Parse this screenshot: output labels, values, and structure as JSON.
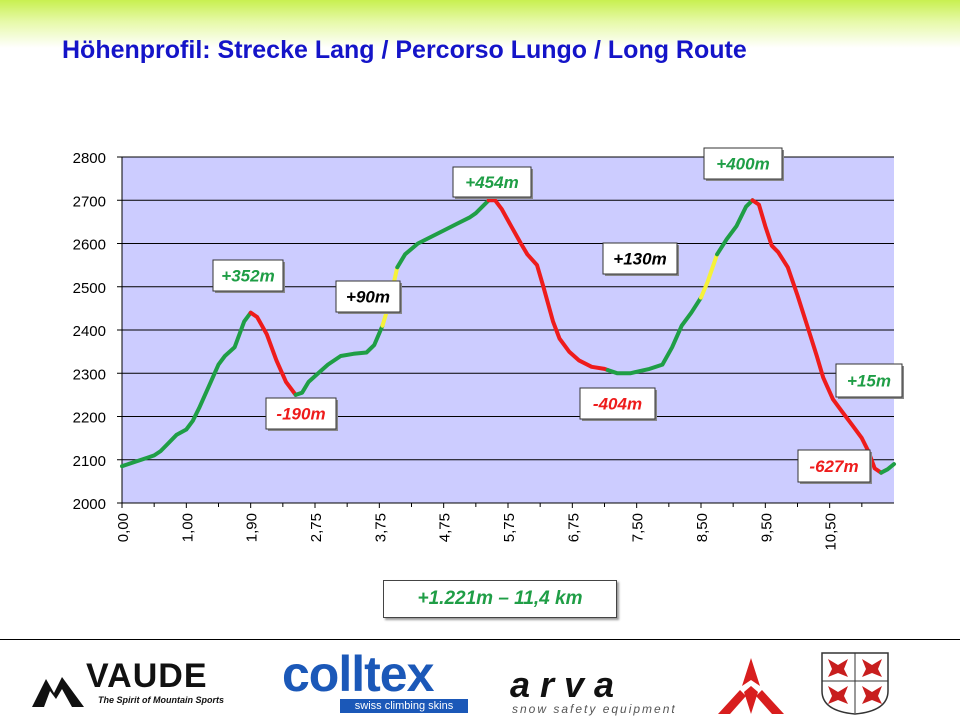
{
  "title": "Höhenprofil: Strecke Lang / Percorso Lungo / Long Route",
  "summary": "+1.221m – 11,4 km",
  "colors": {
    "up": "#1f9e46",
    "down": "#ee1c1c",
    "flat": "#f6f23a",
    "plot_bg": "#ccccff",
    "title": "#1414c8"
  },
  "chart_data": {
    "type": "line",
    "title": "",
    "xlabel": "",
    "ylabel": "",
    "ylim": [
      2000,
      2800
    ],
    "yticks": [
      "2000",
      "2100",
      "2200",
      "2300",
      "2400",
      "2500",
      "2600",
      "2700",
      "2800"
    ],
    "xticks": [
      {
        "label": "0,00",
        "km": 0.0
      },
      {
        "label": "1,00",
        "km": 1.0
      },
      {
        "label": "1,90",
        "km": 2.0
      },
      {
        "label": "2,75",
        "km": 3.0
      },
      {
        "label": "3,75",
        "km": 4.0
      },
      {
        "label": "4,75",
        "km": 5.0
      },
      {
        "label": "5,75",
        "km": 6.0
      },
      {
        "label": "6,75",
        "km": 7.0
      },
      {
        "label": "7,50",
        "km": 8.0
      },
      {
        "label": "8,50",
        "km": 9.0
      },
      {
        "label": "9,50",
        "km": 10.0
      },
      {
        "label": "10,50",
        "km": 11.0
      }
    ],
    "x_max": 12.0,
    "grid": true,
    "profile": [
      [
        0.0,
        2085
      ],
      [
        0.2,
        2095
      ],
      [
        0.4,
        2105
      ],
      [
        0.5,
        2110
      ],
      [
        0.6,
        2120
      ],
      [
        0.7,
        2135
      ],
      [
        0.85,
        2158
      ],
      [
        1.0,
        2170
      ],
      [
        1.1,
        2190
      ],
      [
        1.2,
        2220
      ],
      [
        1.35,
        2270
      ],
      [
        1.5,
        2320
      ],
      [
        1.6,
        2340
      ],
      [
        1.75,
        2360
      ],
      [
        1.9,
        2420
      ],
      [
        2.0,
        2440
      ],
      [
        2.1,
        2430
      ],
      [
        2.25,
        2390
      ],
      [
        2.4,
        2330
      ],
      [
        2.55,
        2280
      ],
      [
        2.7,
        2250
      ],
      [
        2.8,
        2255
      ],
      [
        2.9,
        2280
      ],
      [
        3.05,
        2300
      ],
      [
        3.2,
        2320
      ],
      [
        3.4,
        2340
      ],
      [
        3.6,
        2345
      ],
      [
        3.8,
        2348
      ],
      [
        3.92,
        2365
      ],
      [
        4.05,
        2410
      ],
      [
        4.15,
        2460
      ],
      [
        4.28,
        2545
      ],
      [
        4.4,
        2575
      ],
      [
        4.6,
        2600
      ],
      [
        4.8,
        2615
      ],
      [
        5.0,
        2630
      ],
      [
        5.2,
        2645
      ],
      [
        5.4,
        2660
      ],
      [
        5.5,
        2670
      ],
      [
        5.6,
        2685
      ],
      [
        5.7,
        2700
      ],
      [
        5.8,
        2700
      ],
      [
        5.9,
        2680
      ],
      [
        6.05,
        2640
      ],
      [
        6.2,
        2600
      ],
      [
        6.3,
        2575
      ],
      [
        6.45,
        2550
      ],
      [
        6.55,
        2500
      ],
      [
        6.7,
        2420
      ],
      [
        6.8,
        2380
      ],
      [
        6.95,
        2350
      ],
      [
        7.1,
        2330
      ],
      [
        7.3,
        2315
      ],
      [
        7.5,
        2310
      ],
      [
        7.7,
        2300
      ],
      [
        7.9,
        2300
      ],
      [
        8.05,
        2305
      ],
      [
        8.2,
        2310
      ],
      [
        8.4,
        2320
      ],
      [
        8.55,
        2360
      ],
      [
        8.7,
        2410
      ],
      [
        8.85,
        2440
      ],
      [
        9.0,
        2475
      ],
      [
        9.1,
        2510
      ],
      [
        9.25,
        2575
      ],
      [
        9.4,
        2610
      ],
      [
        9.55,
        2640
      ],
      [
        9.7,
        2685
      ],
      [
        9.8,
        2700
      ],
      [
        9.9,
        2690
      ],
      [
        10.0,
        2640
      ],
      [
        10.1,
        2595
      ],
      [
        10.2,
        2580
      ],
      [
        10.35,
        2545
      ],
      [
        10.5,
        2480
      ],
      [
        10.65,
        2410
      ],
      [
        10.8,
        2340
      ],
      [
        10.9,
        2290
      ],
      [
        11.05,
        2240
      ],
      [
        11.2,
        2210
      ],
      [
        11.35,
        2180
      ],
      [
        11.5,
        2150
      ],
      [
        11.6,
        2120
      ],
      [
        11.7,
        2080
      ],
      [
        11.8,
        2070
      ],
      [
        11.9,
        2078
      ],
      [
        12.0,
        2090
      ]
    ],
    "segments": [
      {
        "kind": "up",
        "from": 0.0,
        "to": 2.0
      },
      {
        "kind": "down",
        "from": 2.0,
        "to": 2.7
      },
      {
        "kind": "up",
        "from": 2.7,
        "to": 4.05
      },
      {
        "kind": "flat",
        "from": 4.05,
        "to": 4.28
      },
      {
        "kind": "up",
        "from": 4.28,
        "to": 5.7
      },
      {
        "kind": "down",
        "from": 5.7,
        "to": 7.55
      },
      {
        "kind": "up",
        "from": 7.55,
        "to": 9.0
      },
      {
        "kind": "flat",
        "from": 9.0,
        "to": 9.25
      },
      {
        "kind": "up",
        "from": 9.25,
        "to": 9.8
      },
      {
        "kind": "down",
        "from": 9.8,
        "to": 11.8
      },
      {
        "kind": "up",
        "from": 11.8,
        "to": 12.0
      }
    ],
    "annotations": [
      {
        "text": "+352m",
        "kind": "up"
      },
      {
        "text": "-190m",
        "kind": "down"
      },
      {
        "text": "+90m",
        "kind": "flat"
      },
      {
        "text": "+454m",
        "kind": "up"
      },
      {
        "text": "-404m",
        "kind": "down"
      },
      {
        "text": "+130m",
        "kind": "flat"
      },
      {
        "text": "+400m",
        "kind": "up"
      },
      {
        "text": "+15m",
        "kind": "up"
      },
      {
        "text": "-627m",
        "kind": "down"
      }
    ]
  },
  "logos": {
    "vaude_name": "VAUDE",
    "vaude_tagline": "The Spirit of Mountain Sports",
    "colltex_name": "colltex",
    "colltex_tagline": "swiss climbing skins",
    "arva_name": "arva",
    "arva_tagline": "snow safety equipment"
  }
}
